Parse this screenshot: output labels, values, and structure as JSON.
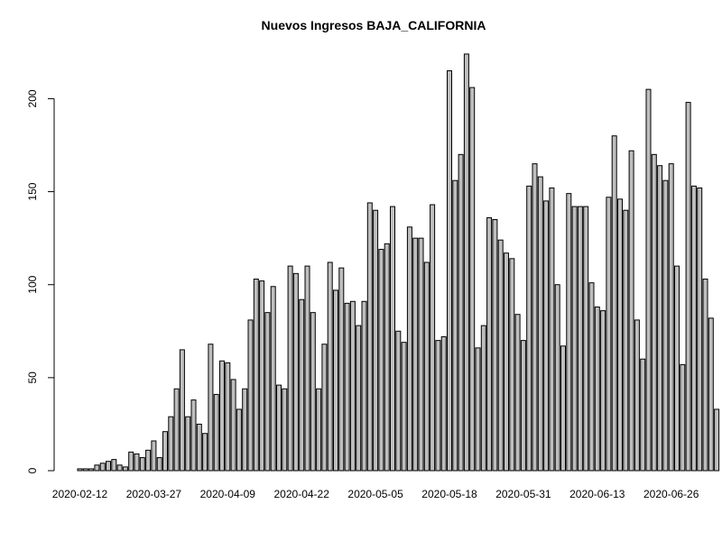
{
  "chart_data": {
    "type": "bar",
    "title": "Nuevos Ingresos BAJA_CALIFORNIA",
    "xlabel": "",
    "ylabel": "",
    "ylim": [
      0,
      230
    ],
    "grid": false,
    "legend": "none",
    "bar_color": "#bebebe",
    "bar_border_color": "#000000",
    "y_ticks": [
      0,
      50,
      100,
      150,
      200
    ],
    "x_tick_labels": [
      {
        "label": "2020-02-12",
        "bar_index": 0
      },
      {
        "label": "2020-03-27",
        "bar_index": 13
      },
      {
        "label": "2020-04-09",
        "bar_index": 26
      },
      {
        "label": "2020-04-22",
        "bar_index": 39
      },
      {
        "label": "2020-05-05",
        "bar_index": 52
      },
      {
        "label": "2020-05-18",
        "bar_index": 65
      },
      {
        "label": "2020-05-31",
        "bar_index": 78
      },
      {
        "label": "2020-06-13",
        "bar_index": 91
      },
      {
        "label": "2020-06-26",
        "bar_index": 104
      }
    ],
    "values": [
      1,
      1,
      1,
      3,
      4,
      5,
      6,
      3,
      2,
      10,
      9,
      7,
      11,
      16,
      7,
      21,
      29,
      44,
      65,
      29,
      38,
      25,
      20,
      68,
      41,
      59,
      58,
      49,
      33,
      44,
      81,
      103,
      102,
      85,
      99,
      46,
      44,
      110,
      106,
      92,
      110,
      85,
      44,
      68,
      112,
      97,
      109,
      90,
      91,
      78,
      91,
      144,
      140,
      119,
      122,
      142,
      75,
      69,
      131,
      125,
      125,
      112,
      143,
      70,
      72,
      215,
      156,
      170,
      224,
      206,
      66,
      78,
      136,
      135,
      124,
      117,
      114,
      84,
      70,
      153,
      165,
      158,
      145,
      152,
      100,
      67,
      149,
      142,
      142,
      142,
      101,
      88,
      86,
      147,
      180,
      146,
      140,
      172,
      81,
      60,
      205,
      170,
      164,
      156,
      165,
      110,
      57,
      198,
      153,
      152,
      103,
      82,
      33
    ]
  }
}
